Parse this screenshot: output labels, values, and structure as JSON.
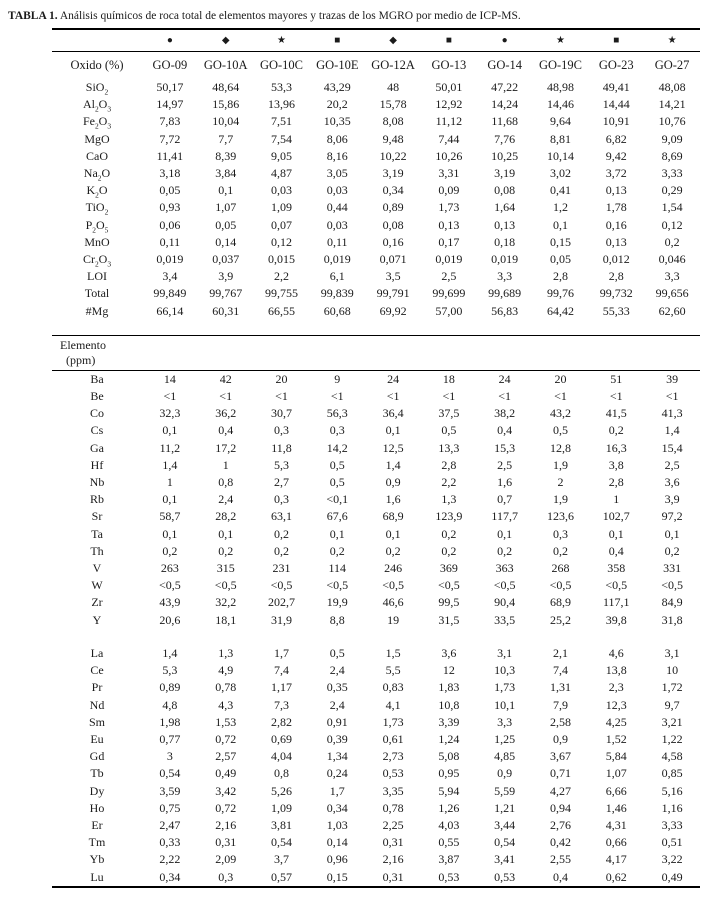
{
  "title": {
    "label": "TABLA 1.",
    "text": " Análisis químicos de roca total de elementos mayores y trazas de los MGRO por medio de ICP-MS."
  },
  "table": {
    "symbols": [
      "●",
      "◆",
      "★",
      "■",
      "◆",
      "■",
      "●",
      "★",
      "■",
      "★"
    ],
    "columns_label": "Oxido (%)",
    "columns": [
      "GO-09",
      "GO-10A",
      "GO-10C",
      "GO-10E",
      "GO-12A",
      "GO-13",
      "GO-14",
      "GO-19C",
      "GO-23",
      "GO-27"
    ],
    "oxide_rows": [
      {
        "label": "SiO~2~",
        "values": [
          "50,17",
          "48,64",
          "53,3",
          "43,29",
          "48",
          "50,01",
          "47,22",
          "48,98",
          "49,41",
          "48,08"
        ]
      },
      {
        "label": "Al~2~O~3~",
        "values": [
          "14,97",
          "15,86",
          "13,96",
          "20,2",
          "15,78",
          "12,92",
          "14,24",
          "14,46",
          "14,44",
          "14,21"
        ]
      },
      {
        "label": "Fe~2~O~3~",
        "values": [
          "7,83",
          "10,04",
          "7,51",
          "10,35",
          "8,08",
          "11,12",
          "11,68",
          "9,64",
          "10,91",
          "10,76"
        ]
      },
      {
        "label": "MgO",
        "values": [
          "7,72",
          "7,7",
          "7,54",
          "8,06",
          "9,48",
          "7,44",
          "7,76",
          "8,81",
          "6,82",
          "9,09"
        ]
      },
      {
        "label": "CaO",
        "values": [
          "11,41",
          "8,39",
          "9,05",
          "8,16",
          "10,22",
          "10,26",
          "10,25",
          "10,14",
          "9,42",
          "8,69"
        ]
      },
      {
        "label": "Na~2~O",
        "values": [
          "3,18",
          "3,84",
          "4,87",
          "3,05",
          "3,19",
          "3,31",
          "3,19",
          "3,02",
          "3,72",
          "3,33"
        ]
      },
      {
        "label": "K~2~O",
        "values": [
          "0,05",
          "0,1",
          "0,03",
          "0,03",
          "0,34",
          "0,09",
          "0,08",
          "0,41",
          "0,13",
          "0,29"
        ]
      },
      {
        "label": "TiO~2~",
        "values": [
          "0,93",
          "1,07",
          "1,09",
          "0,44",
          "0,89",
          "1,73",
          "1,64",
          "1,2",
          "1,78",
          "1,54"
        ]
      },
      {
        "label": "P~2~O~5~",
        "values": [
          "0,06",
          "0,05",
          "0,07",
          "0,03",
          "0,08",
          "0,13",
          "0,13",
          "0,1",
          "0,16",
          "0,12"
        ]
      },
      {
        "label": "MnO",
        "values": [
          "0,11",
          "0,14",
          "0,12",
          "0,11",
          "0,16",
          "0,17",
          "0,18",
          "0,15",
          "0,13",
          "0,2"
        ]
      },
      {
        "label": "Cr~2~O~3~",
        "values": [
          "0,019",
          "0,037",
          "0,015",
          "0,019",
          "0,071",
          "0,019",
          "0,019",
          "0,05",
          "0,012",
          "0,046"
        ]
      },
      {
        "label": "LOI",
        "values": [
          "3,4",
          "3,9",
          "2,2",
          "6,1",
          "3,5",
          "2,5",
          "3,3",
          "2,8",
          "2,8",
          "3,3"
        ]
      },
      {
        "label": "Total",
        "values": [
          "99,849",
          "99,767",
          "99,755",
          "99,839",
          "99,791",
          "99,699",
          "99,689",
          "99,76",
          "99,732",
          "99,656"
        ]
      },
      {
        "label": "#Mg",
        "values": [
          "66,14",
          "60,31",
          "66,55",
          "60,68",
          "69,92",
          "57,00",
          "56,83",
          "64,42",
          "55,33",
          "62,60"
        ]
      }
    ],
    "elements_section_header": {
      "line1": "Elemento",
      "line2": "(ppm)"
    },
    "trace_rows": [
      {
        "label": "Ba",
        "values": [
          "14",
          "42",
          "20",
          "9",
          "24",
          "18",
          "24",
          "20",
          "51",
          "39"
        ]
      },
      {
        "label": "Be",
        "values": [
          "<1",
          "<1",
          "<1",
          "<1",
          "<1",
          "<1",
          "<1",
          "<1",
          "<1",
          "<1"
        ]
      },
      {
        "label": "Co",
        "values": [
          "32,3",
          "36,2",
          "30,7",
          "56,3",
          "36,4",
          "37,5",
          "38,2",
          "43,2",
          "41,5",
          "41,3"
        ]
      },
      {
        "label": "Cs",
        "values": [
          "0,1",
          "0,4",
          "0,3",
          "0,3",
          "0,1",
          "0,5",
          "0,4",
          "0,5",
          "0,2",
          "1,4"
        ]
      },
      {
        "label": "Ga",
        "values": [
          "11,2",
          "17,2",
          "11,8",
          "14,2",
          "12,5",
          "13,3",
          "15,3",
          "12,8",
          "16,3",
          "15,4"
        ]
      },
      {
        "label": "Hf",
        "values": [
          "1,4",
          "1",
          "5,3",
          "0,5",
          "1,4",
          "2,8",
          "2,5",
          "1,9",
          "3,8",
          "2,5"
        ]
      },
      {
        "label": "Nb",
        "values": [
          "1",
          "0,8",
          "2,7",
          "0,5",
          "0,9",
          "2,2",
          "1,6",
          "2",
          "2,8",
          "3,6"
        ]
      },
      {
        "label": "Rb",
        "values": [
          "0,1",
          "2,4",
          "0,3",
          "<0,1",
          "1,6",
          "1,3",
          "0,7",
          "1,9",
          "1",
          "3,9"
        ]
      },
      {
        "label": "Sr",
        "values": [
          "58,7",
          "28,2",
          "63,1",
          "67,6",
          "68,9",
          "123,9",
          "117,7",
          "123,6",
          "102,7",
          "97,2"
        ]
      },
      {
        "label": "Ta",
        "values": [
          "0,1",
          "0,1",
          "0,2",
          "0,1",
          "0,1",
          "0,2",
          "0,1",
          "0,3",
          "0,1",
          "0,1"
        ]
      },
      {
        "label": "Th",
        "values": [
          "0,2",
          "0,2",
          "0,2",
          "0,2",
          "0,2",
          "0,2",
          "0,2",
          "0,2",
          "0,4",
          "0,2"
        ]
      },
      {
        "label": "V",
        "values": [
          "263",
          "315",
          "231",
          "114",
          "246",
          "369",
          "363",
          "268",
          "358",
          "331"
        ]
      },
      {
        "label": "W",
        "values": [
          "<0,5",
          "<0,5",
          "<0,5",
          "<0,5",
          "<0,5",
          "<0,5",
          "<0,5",
          "<0,5",
          "<0,5",
          "<0,5"
        ]
      },
      {
        "label": "Zr",
        "values": [
          "43,9",
          "32,2",
          "202,7",
          "19,9",
          "46,6",
          "99,5",
          "90,4",
          "68,9",
          "117,1",
          "84,9"
        ]
      },
      {
        "label": "Y",
        "values": [
          "20,6",
          "18,1",
          "31,9",
          "8,8",
          "19",
          "31,5",
          "33,5",
          "25,2",
          "39,8",
          "31,8"
        ]
      }
    ],
    "ree_rows": [
      {
        "label": "La",
        "values": [
          "1,4",
          "1,3",
          "1,7",
          "0,5",
          "1,5",
          "3,6",
          "3,1",
          "2,1",
          "4,6",
          "3,1"
        ]
      },
      {
        "label": "Ce",
        "values": [
          "5,3",
          "4,9",
          "7,4",
          "2,4",
          "5,5",
          "12",
          "10,3",
          "7,4",
          "13,8",
          "10"
        ]
      },
      {
        "label": "Pr",
        "values": [
          "0,89",
          "0,78",
          "1,17",
          "0,35",
          "0,83",
          "1,83",
          "1,73",
          "1,31",
          "2,3",
          "1,72"
        ]
      },
      {
        "label": "Nd",
        "values": [
          "4,8",
          "4,3",
          "7,3",
          "2,4",
          "4,1",
          "10,8",
          "10,1",
          "7,9",
          "12,3",
          "9,7"
        ]
      },
      {
        "label": "Sm",
        "values": [
          "1,98",
          "1,53",
          "2,82",
          "0,91",
          "1,73",
          "3,39",
          "3,3",
          "2,58",
          "4,25",
          "3,21"
        ]
      },
      {
        "label": "Eu",
        "values": [
          "0,77",
          "0,72",
          "0,69",
          "0,39",
          "0,61",
          "1,24",
          "1,25",
          "0,9",
          "1,52",
          "1,22"
        ]
      },
      {
        "label": "Gd",
        "values": [
          "3",
          "2,57",
          "4,04",
          "1,34",
          "2,73",
          "5,08",
          "4,85",
          "3,67",
          "5,84",
          "4,58"
        ]
      },
      {
        "label": "Tb",
        "values": [
          "0,54",
          "0,49",
          "0,8",
          "0,24",
          "0,53",
          "0,95",
          "0,9",
          "0,71",
          "1,07",
          "0,85"
        ]
      },
      {
        "label": "Dy",
        "values": [
          "3,59",
          "3,42",
          "5,26",
          "1,7",
          "3,35",
          "5,94",
          "5,59",
          "4,27",
          "6,66",
          "5,16"
        ]
      },
      {
        "label": "Ho",
        "values": [
          "0,75",
          "0,72",
          "1,09",
          "0,34",
          "0,78",
          "1,26",
          "1,21",
          "0,94",
          "1,46",
          "1,16"
        ]
      },
      {
        "label": "Er",
        "values": [
          "2,47",
          "2,16",
          "3,81",
          "1,03",
          "2,25",
          "4,03",
          "3,44",
          "2,76",
          "4,31",
          "3,33"
        ]
      },
      {
        "label": "Tm",
        "values": [
          "0,33",
          "0,31",
          "0,54",
          "0,14",
          "0,31",
          "0,55",
          "0,54",
          "0,42",
          "0,66",
          "0,51"
        ]
      },
      {
        "label": "Yb",
        "values": [
          "2,22",
          "2,09",
          "3,7",
          "0,96",
          "2,16",
          "3,87",
          "3,41",
          "2,55",
          "4,17",
          "3,22"
        ]
      },
      {
        "label": "Lu",
        "values": [
          "0,34",
          "0,3",
          "0,57",
          "0,15",
          "0,31",
          "0,53",
          "0,53",
          "0,4",
          "0,62",
          "0,49"
        ]
      }
    ]
  }
}
